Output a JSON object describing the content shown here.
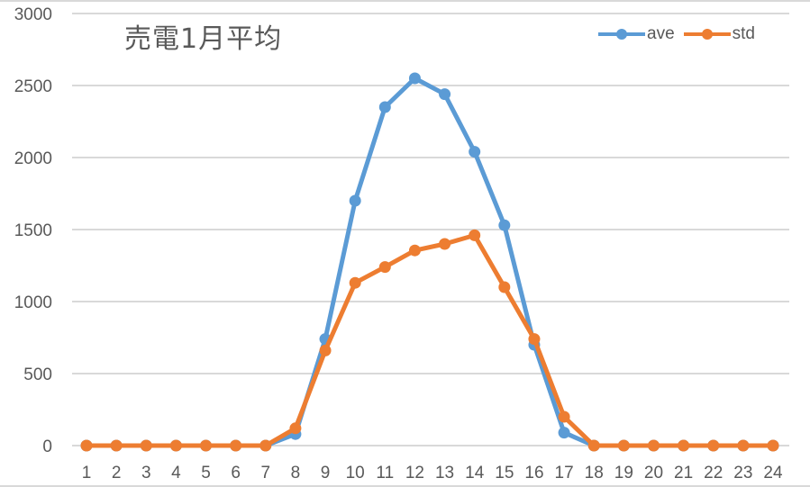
{
  "chart_data": {
    "type": "line",
    "title": "売電1月平均",
    "xlabel": "",
    "ylabel": "",
    "x": [
      1,
      2,
      3,
      4,
      5,
      6,
      7,
      8,
      9,
      10,
      11,
      12,
      13,
      14,
      15,
      16,
      17,
      18,
      19,
      20,
      21,
      22,
      23,
      24
    ],
    "series": [
      {
        "name": "ave",
        "color": "#5b9bd5",
        "values": [
          0,
          0,
          0,
          0,
          0,
          0,
          0,
          80,
          740,
          1700,
          2350,
          2550,
          2440,
          2040,
          1530,
          700,
          90,
          0,
          0,
          0,
          0,
          0,
          0,
          0
        ]
      },
      {
        "name": "std",
        "color": "#ed7d31",
        "values": [
          0,
          0,
          0,
          0,
          0,
          0,
          0,
          120,
          660,
          1130,
          1240,
          1355,
          1400,
          1460,
          1100,
          740,
          200,
          0,
          0,
          0,
          0,
          0,
          0,
          0
        ]
      }
    ],
    "ylim": [
      0,
      3000
    ],
    "yticks": [
      0,
      500,
      1000,
      1500,
      2000,
      2500,
      3000
    ],
    "grid": true,
    "legend_position": "top-right"
  },
  "colors": {
    "grid": "#d9d9d9",
    "text": "#595959"
  }
}
